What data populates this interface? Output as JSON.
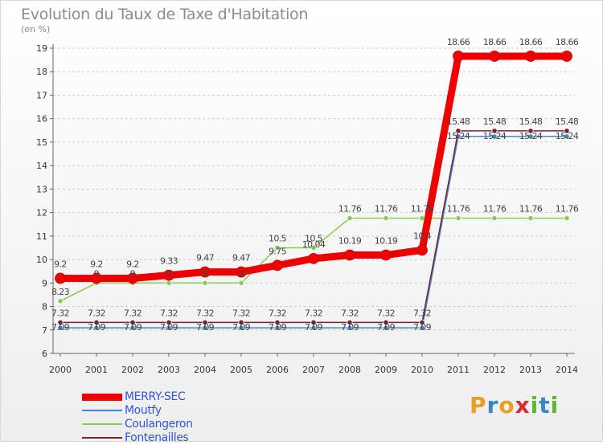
{
  "title": "Evolution du Taux de Taxe d'Habitation",
  "unit_label": "(en %)",
  "logo": {
    "letters": [
      "P",
      "r",
      "o",
      "x",
      "i",
      "t",
      "i"
    ],
    "colors": [
      "#e8a020",
      "#3a86c8",
      "#e8a020",
      "#d03030",
      "#5cb82e",
      "#3a86c8",
      "#5cb82e"
    ]
  },
  "chart_data": {
    "type": "line",
    "title": "Evolution du Taux de Taxe d'Habitation",
    "ylabel": "(en %)",
    "x": [
      "2000",
      "2001",
      "2002",
      "2003",
      "2004",
      "2005",
      "2006",
      "2007",
      "2008",
      "2009",
      "2010",
      "2011",
      "2012",
      "2013",
      "2014"
    ],
    "ylim": [
      6,
      19
    ],
    "yticks": [
      6,
      7,
      8,
      9,
      10,
      11,
      12,
      13,
      14,
      15,
      16,
      17,
      18,
      19
    ],
    "grid": "dashed horizontal",
    "legend_position": "bottom-left",
    "series": [
      {
        "name": "MERRY-SEC",
        "color": "#ee0000",
        "width": 9,
        "values": [
          9.2,
          9.2,
          9.2,
          9.33,
          9.47,
          9.47,
          9.75,
          10.04,
          10.19,
          10.19,
          10.4,
          18.66,
          18.66,
          18.66,
          18.66
        ],
        "labels": [
          "9.2",
          "9.2",
          "9.2",
          "9.33",
          "9.47",
          "9.47",
          "9.75",
          "10.04",
          "10.19",
          "10.19",
          "10.4",
          "18.66",
          "18.66",
          "18.66",
          "18.66"
        ]
      },
      {
        "name": "Moutfy",
        "color": "#4488cc",
        "width": 1.5,
        "values": [
          7.09,
          7.09,
          7.09,
          7.09,
          7.09,
          7.09,
          7.09,
          7.09,
          7.09,
          7.09,
          7.09,
          15.24,
          15.24,
          15.24,
          15.24
        ],
        "labels": [
          "7.09",
          "7.09",
          "7.09",
          "7.09",
          "7.09",
          "7.09",
          "7.09",
          "7.09",
          "7.09",
          "7.09",
          "7.09",
          "15.24",
          "15.24",
          "15.24",
          "15.24"
        ]
      },
      {
        "name": "Coulangeron",
        "color": "#88cc55",
        "width": 1.5,
        "values": [
          8.23,
          9,
          9,
          9,
          9,
          9,
          10.5,
          10.5,
          11.76,
          11.76,
          11.76,
          11.76,
          11.76,
          11.76,
          11.76
        ],
        "labels": [
          "8.23",
          "9",
          "9",
          "9",
          "9",
          "9",
          "10.5",
          "10.5",
          "11.76",
          "11.76",
          "11.76",
          "11.76",
          "11.76",
          "11.76",
          "11.76"
        ]
      },
      {
        "name": "Fontenailles",
        "color": "#772233",
        "width": 1.5,
        "values": [
          7.32,
          7.32,
          7.32,
          7.32,
          7.32,
          7.32,
          7.32,
          7.32,
          7.32,
          7.32,
          7.32,
          15.48,
          15.48,
          15.48,
          15.48
        ],
        "labels": [
          "7.32",
          "7.32",
          "7.32",
          "7.32",
          "7.32",
          "7.32",
          "7.32",
          "7.32",
          "7.32",
          "7.32",
          "7.32",
          "15.48",
          "15.48",
          "15.48",
          "15.48"
        ]
      }
    ]
  }
}
